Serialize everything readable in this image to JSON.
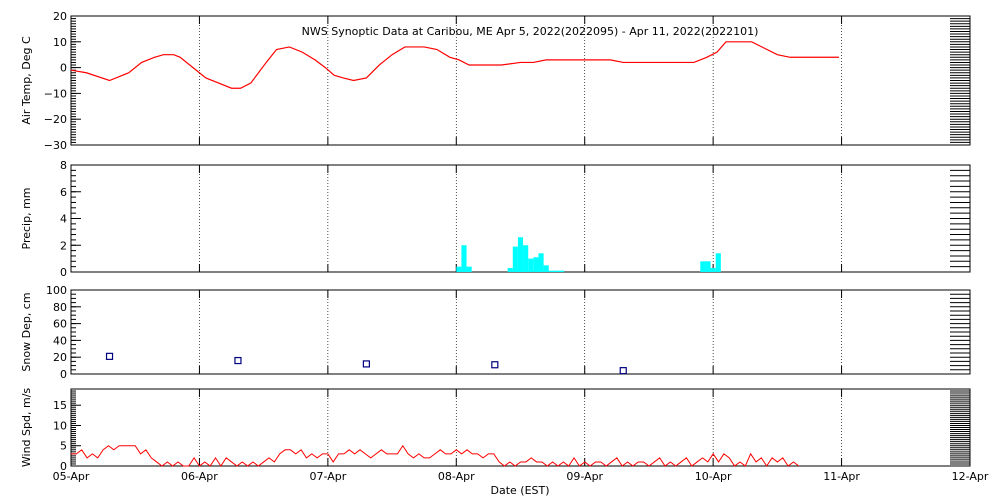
{
  "title": "NWS Synoptic Data at Caribou, ME   Apr  5, 2022(2022095) - Apr 11, 2022(2022101)",
  "xlabel": "Date (EST)",
  "colors": {
    "temp": "#ff0000",
    "precip": "#00ffff",
    "snow": "#000080",
    "wind": "#ff0000",
    "axis": "#000000"
  },
  "chart_data": [
    {
      "type": "line",
      "ylabel": "Air Temp, Deg C",
      "ylim": [
        -30,
        20
      ],
      "yticks": [
        "−30",
        "−20",
        "−10",
        "0",
        "10",
        "20"
      ],
      "x_unit": "days since 05-Apr 00:00 EST",
      "series": [
        {
          "name": "Air Temp",
          "x": [
            0,
            0.12,
            0.3,
            0.45,
            0.55,
            0.65,
            0.72,
            0.8,
            0.85,
            0.95,
            1.05,
            1.15,
            1.25,
            1.32,
            1.4,
            1.52,
            1.6,
            1.7,
            1.8,
            1.9,
            1.98,
            2.05,
            2.12,
            2.2,
            2.3,
            2.4,
            2.5,
            2.6,
            2.65,
            2.75,
            2.85,
            2.95,
            3.02,
            3.1,
            3.2,
            3.25,
            3.35,
            3.5,
            3.6,
            3.7,
            3.85,
            4,
            4.2,
            4.3,
            4.4,
            4.5,
            4.6,
            4.7,
            4.8,
            4.85,
            4.95,
            5.03,
            5.1,
            5.3,
            5.5,
            5.6,
            5.7,
            5.8,
            5.9,
            5.98
          ],
          "values": [
            -1,
            -2,
            -5,
            -2,
            2,
            4,
            5,
            5,
            4,
            0,
            -4,
            -6,
            -8,
            -8,
            -6,
            2,
            7,
            8,
            6,
            3,
            0,
            -3,
            -4,
            -5,
            -4,
            1,
            5,
            8,
            8,
            8,
            7,
            4,
            3,
            1,
            1,
            1,
            1,
            2,
            2,
            3,
            3,
            3,
            3,
            2,
            2,
            2,
            2,
            2,
            2,
            2,
            4,
            6,
            10,
            10,
            5,
            4,
            4,
            4,
            4,
            4
          ]
        }
      ]
    },
    {
      "type": "bar",
      "ylabel": "Precip, mm",
      "ylim": [
        0,
        8
      ],
      "yticks": [
        "0",
        "2",
        "4",
        "6",
        "8"
      ],
      "x_unit": "days since 05-Apr 00:00 EST",
      "bar_width_days": 0.04,
      "x": [
        3.0,
        3.04,
        3.08,
        3.12,
        3.4,
        3.44,
        3.48,
        3.52,
        3.56,
        3.6,
        3.64,
        3.68,
        3.72,
        3.76,
        3.8,
        3.84,
        3.88,
        4.9,
        4.94,
        4.98,
        5.02
      ],
      "values": [
        0.4,
        2.0,
        0.4,
        0,
        0.3,
        1.9,
        2.6,
        2.0,
        1.0,
        1.1,
        1.4,
        0.5,
        0.1,
        0.1,
        0.1,
        0,
        0,
        0.8,
        0.8,
        0.3,
        1.4
      ]
    },
    {
      "type": "scatter",
      "ylabel": "Snow Dep, cm",
      "ylim": [
        0,
        100
      ],
      "yticks": [
        "0",
        "20",
        "40",
        "60",
        "80",
        "100"
      ],
      "x_unit": "days since 05-Apr 00:00 EST",
      "x": [
        0.3,
        1.3,
        2.3,
        3.3,
        4.3
      ],
      "values": [
        21,
        16,
        12,
        11,
        4
      ]
    },
    {
      "type": "line",
      "ylabel": "Wind Spd, m/s",
      "ylim": [
        0,
        19
      ],
      "yticks": [
        "0",
        "5",
        "10",
        "15"
      ],
      "x_unit": "days since 05-Apr 00:00 EST",
      "x_step_days": 0.04167,
      "values": [
        3,
        3,
        4,
        2,
        3,
        2,
        4,
        5,
        4,
        5,
        5,
        5,
        5,
        3,
        4,
        2,
        1,
        0,
        1,
        0,
        1,
        0,
        0,
        2,
        0,
        1,
        0,
        2,
        0,
        2,
        1,
        0,
        1,
        0,
        1,
        0,
        1,
        2,
        1,
        3,
        4,
        4,
        3,
        4,
        2,
        3,
        2,
        3,
        3,
        1,
        3,
        3,
        4,
        3,
        4,
        3,
        2,
        3,
        4,
        3,
        3,
        3,
        5,
        3,
        2,
        3,
        2,
        2,
        3,
        4,
        3,
        3,
        4,
        3,
        4,
        3,
        3,
        2,
        3,
        3,
        1,
        0,
        1,
        0,
        1,
        1,
        2,
        1,
        1,
        0,
        1,
        0,
        1,
        0,
        2,
        0,
        1,
        0,
        1,
        1,
        0,
        1,
        2,
        0,
        1,
        0,
        1,
        1,
        0,
        1,
        2,
        0,
        1,
        0,
        1,
        2,
        0,
        1,
        2,
        1,
        3,
        1,
        3,
        2,
        0,
        1,
        0,
        3,
        1,
        2,
        0,
        2,
        1,
        2,
        0,
        1,
        0
      ]
    }
  ],
  "xticks": [
    "05-Apr",
    "06-Apr",
    "07-Apr",
    "08-Apr",
    "09-Apr",
    "10-Apr",
    "11-Apr",
    "12-Apr"
  ]
}
